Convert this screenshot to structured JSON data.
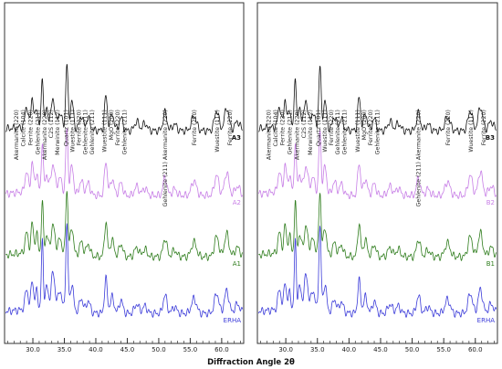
{
  "xlabel": "Diffraction Angle 2θ",
  "chart_data": [
    {
      "type": "line",
      "panel": "left",
      "xlabel": "Diffraction Angle 2θ",
      "xlim": [
        25.5,
        63.5
      ],
      "x_ticks": [
        30.0,
        35.0,
        40.0,
        45.0,
        50.0,
        55.0,
        60.0
      ],
      "x_tick_labels": [
        "30.0",
        "35.0",
        "40.0",
        "45.0",
        "50.0",
        "55.0",
        "60.0"
      ],
      "grid": false,
      "series": [
        {
          "name": "A3",
          "color": "#111111",
          "offset": 0
        },
        {
          "name": "A2",
          "color": "#c77ee6",
          "offset": 1
        },
        {
          "name": "A1",
          "color": "#2f7d1d",
          "offset": 2
        },
        {
          "name": "ERHA",
          "color": "#3b3bd9",
          "offset": 3
        }
      ],
      "peaks": [
        {
          "x": 29.0,
          "h": 0.22,
          "s": 0.25
        },
        {
          "x": 29.9,
          "h": 0.32,
          "s": 0.2
        },
        {
          "x": 30.6,
          "h": 0.2,
          "s": 0.2
        },
        {
          "x": 31.5,
          "h": 0.55,
          "s": 0.15
        },
        {
          "x": 32.2,
          "h": 0.18,
          "s": 0.25
        },
        {
          "x": 33.2,
          "h": 0.3,
          "s": 0.3
        },
        {
          "x": 34.3,
          "h": 0.16,
          "s": 0.3
        },
        {
          "x": 35.4,
          "h": 0.7,
          "s": 0.18
        },
        {
          "x": 36.2,
          "h": 0.3,
          "s": 0.25
        },
        {
          "x": 37.7,
          "h": 0.15,
          "s": 0.3
        },
        {
          "x": 38.8,
          "h": 0.13,
          "s": 0.3
        },
        {
          "x": 41.6,
          "h": 0.38,
          "s": 0.22
        },
        {
          "x": 42.6,
          "h": 0.18,
          "s": 0.3
        },
        {
          "x": 44.0,
          "h": 0.14,
          "s": 0.3
        },
        {
          "x": 46.5,
          "h": 0.1,
          "s": 0.35
        },
        {
          "x": 47.8,
          "h": 0.08,
          "s": 0.35
        },
        {
          "x": 51.0,
          "h": 0.2,
          "s": 0.3
        },
        {
          "x": 52.5,
          "h": 0.07,
          "s": 0.35
        },
        {
          "x": 55.6,
          "h": 0.16,
          "s": 0.4
        },
        {
          "x": 59.2,
          "h": 0.22,
          "s": 0.35
        },
        {
          "x": 60.8,
          "h": 0.25,
          "s": 0.35
        },
        {
          "x": 62.5,
          "h": 0.1,
          "s": 0.4
        }
      ],
      "annotations": [
        {
          "text": "Akermanite (220)",
          "x": 27.4
        },
        {
          "text": "Calcite (104)",
          "x": 28.5
        },
        {
          "text": "Ferrite (220)",
          "x": 29.6
        },
        {
          "text": "Gehlenite (211)",
          "x": 30.8
        },
        {
          "text": "Akermanite (220)",
          "x": 31.9
        },
        {
          "text": "C2S (112)",
          "x": 32.9
        },
        {
          "text": "Merwinite (112)",
          "x": 33.9
        },
        {
          "text": "Quartz (101)",
          "x": 35.3
        },
        {
          "text": "Wuestite (111)",
          "x": 36.3
        },
        {
          "text": "Ferrite (220)",
          "x": 37.3
        },
        {
          "text": "Gehlenite (211)",
          "x": 38.3
        },
        {
          "text": "Gehlenite (211)",
          "x": 39.4
        },
        {
          "text": "Wuestite (111)",
          "x": 41.4
        },
        {
          "text": "MgO (200)",
          "x": 42.5
        },
        {
          "text": "Ferrite (220)",
          "x": 43.5
        },
        {
          "text": "Gehlenite (211)",
          "x": 44.6
        },
        {
          "text": "Gehlenite (211) Akermanite (220)",
          "x": 51.0
        },
        {
          "text": "Ferrite (220)",
          "x": 55.7
        },
        {
          "text": "Wuestite (111)",
          "x": 59.3
        },
        {
          "text": "Ferrite (220)",
          "x": 61.3
        }
      ]
    },
    {
      "type": "line",
      "panel": "right",
      "xlabel": "Diffraction Angle 2θ",
      "xlim": [
        25.5,
        63.5
      ],
      "x_ticks": [
        30.0,
        35.0,
        40.0,
        45.0,
        50.0,
        55.0,
        60.0
      ],
      "x_tick_labels": [
        "30.0",
        "35.0",
        "40.0",
        "45.0",
        "50.0",
        "55.0",
        "60.0"
      ],
      "grid": false,
      "series": [
        {
          "name": "B3",
          "color": "#111111",
          "offset": 0
        },
        {
          "name": "B2",
          "color": "#c77ee6",
          "offset": 1
        },
        {
          "name": "B1",
          "color": "#2f7d1d",
          "offset": 2
        },
        {
          "name": "ERHA",
          "color": "#3b3bd9",
          "offset": 3
        }
      ],
      "peaks": [
        {
          "x": 29.0,
          "h": 0.22,
          "s": 0.25
        },
        {
          "x": 29.9,
          "h": 0.3,
          "s": 0.2
        },
        {
          "x": 30.6,
          "h": 0.18,
          "s": 0.2
        },
        {
          "x": 31.5,
          "h": 0.55,
          "s": 0.15
        },
        {
          "x": 32.2,
          "h": 0.18,
          "s": 0.25
        },
        {
          "x": 33.2,
          "h": 0.28,
          "s": 0.3
        },
        {
          "x": 34.3,
          "h": 0.16,
          "s": 0.3
        },
        {
          "x": 35.4,
          "h": 0.68,
          "s": 0.18
        },
        {
          "x": 36.2,
          "h": 0.3,
          "s": 0.25
        },
        {
          "x": 37.7,
          "h": 0.14,
          "s": 0.3
        },
        {
          "x": 38.8,
          "h": 0.12,
          "s": 0.3
        },
        {
          "x": 41.6,
          "h": 0.36,
          "s": 0.22
        },
        {
          "x": 42.6,
          "h": 0.18,
          "s": 0.3
        },
        {
          "x": 44.0,
          "h": 0.13,
          "s": 0.3
        },
        {
          "x": 46.5,
          "h": 0.1,
          "s": 0.35
        },
        {
          "x": 47.8,
          "h": 0.08,
          "s": 0.35
        },
        {
          "x": 51.0,
          "h": 0.19,
          "s": 0.3
        },
        {
          "x": 52.5,
          "h": 0.07,
          "s": 0.35
        },
        {
          "x": 55.6,
          "h": 0.15,
          "s": 0.4
        },
        {
          "x": 59.2,
          "h": 0.22,
          "s": 0.35
        },
        {
          "x": 60.8,
          "h": 0.26,
          "s": 0.35
        },
        {
          "x": 62.5,
          "h": 0.1,
          "s": 0.4
        }
      ],
      "annotations": [
        {
          "text": "Akermanite (220)",
          "x": 27.3
        },
        {
          "text": "Calcite (104)",
          "x": 28.4
        },
        {
          "text": "Ferrite (220)",
          "x": 29.5
        },
        {
          "text": "Gehlenite (211)",
          "x": 30.6
        },
        {
          "text": "Akermanite (220)",
          "x": 31.8
        },
        {
          "text": "C2S (112)",
          "x": 32.9
        },
        {
          "text": "Merwinite (112)",
          "x": 33.9
        },
        {
          "text": "Quartz (101)",
          "x": 35.2
        },
        {
          "text": "Wuestite (111)",
          "x": 36.2
        },
        {
          "text": "Ferrite (220)",
          "x": 37.2
        },
        {
          "text": "Gehlenite (211)",
          "x": 38.2
        },
        {
          "text": "Gehlenite (211)",
          "x": 39.3
        },
        {
          "text": "Wuestite (111)",
          "x": 41.4
        },
        {
          "text": "MgO (200)",
          "x": 42.4
        },
        {
          "text": "Ferrite (220)",
          "x": 43.4
        },
        {
          "text": "Gehlenite (211)",
          "x": 44.5
        },
        {
          "text": "Gehlenite (211) Akermanite (220)",
          "x": 51.0
        },
        {
          "text": "Ferrite (220)",
          "x": 55.7
        },
        {
          "text": "Wuestite (111)",
          "x": 59.3
        },
        {
          "text": "Ferrite (220)",
          "x": 61.3
        }
      ]
    }
  ]
}
